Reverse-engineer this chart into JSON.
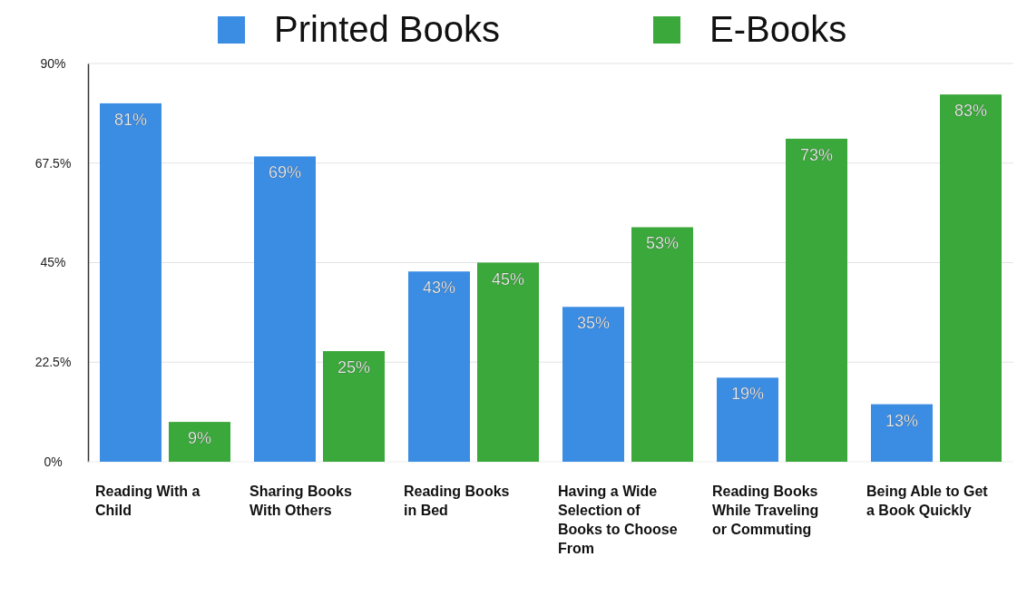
{
  "chart_data": {
    "type": "bar",
    "categories": [
      "Reading With a Child",
      "Sharing Books With Others",
      "Reading Books in Bed",
      "Having a Wide Selection of Books to Choose From",
      "Reading Books While Traveling or Commuting",
      "Being Able to Get a Book Quickly"
    ],
    "series": [
      {
        "name": "Printed Books",
        "color": "#3b8de4",
        "values": [
          81,
          69,
          43,
          35,
          19,
          13
        ],
        "value_labels": [
          "81%",
          "69%",
          "43%",
          "35%",
          "19%",
          "13%"
        ]
      },
      {
        "name": "E-Books",
        "color": "#3aa83a",
        "values": [
          9,
          25,
          45,
          53,
          73,
          83
        ],
        "value_labels": [
          "9%",
          "25%",
          "45%",
          "53%",
          "73%",
          "83%"
        ]
      }
    ],
    "ylim": [
      0,
      90
    ],
    "yticks": [
      {
        "value": 0,
        "label": "0%"
      },
      {
        "value": 22.5,
        "label": "22.5%"
      },
      {
        "value": 45,
        "label": "45%"
      },
      {
        "value": 67.5,
        "label": "67.5%"
      },
      {
        "value": 90,
        "label": "90%"
      }
    ],
    "grid": "y",
    "legend": "top"
  }
}
